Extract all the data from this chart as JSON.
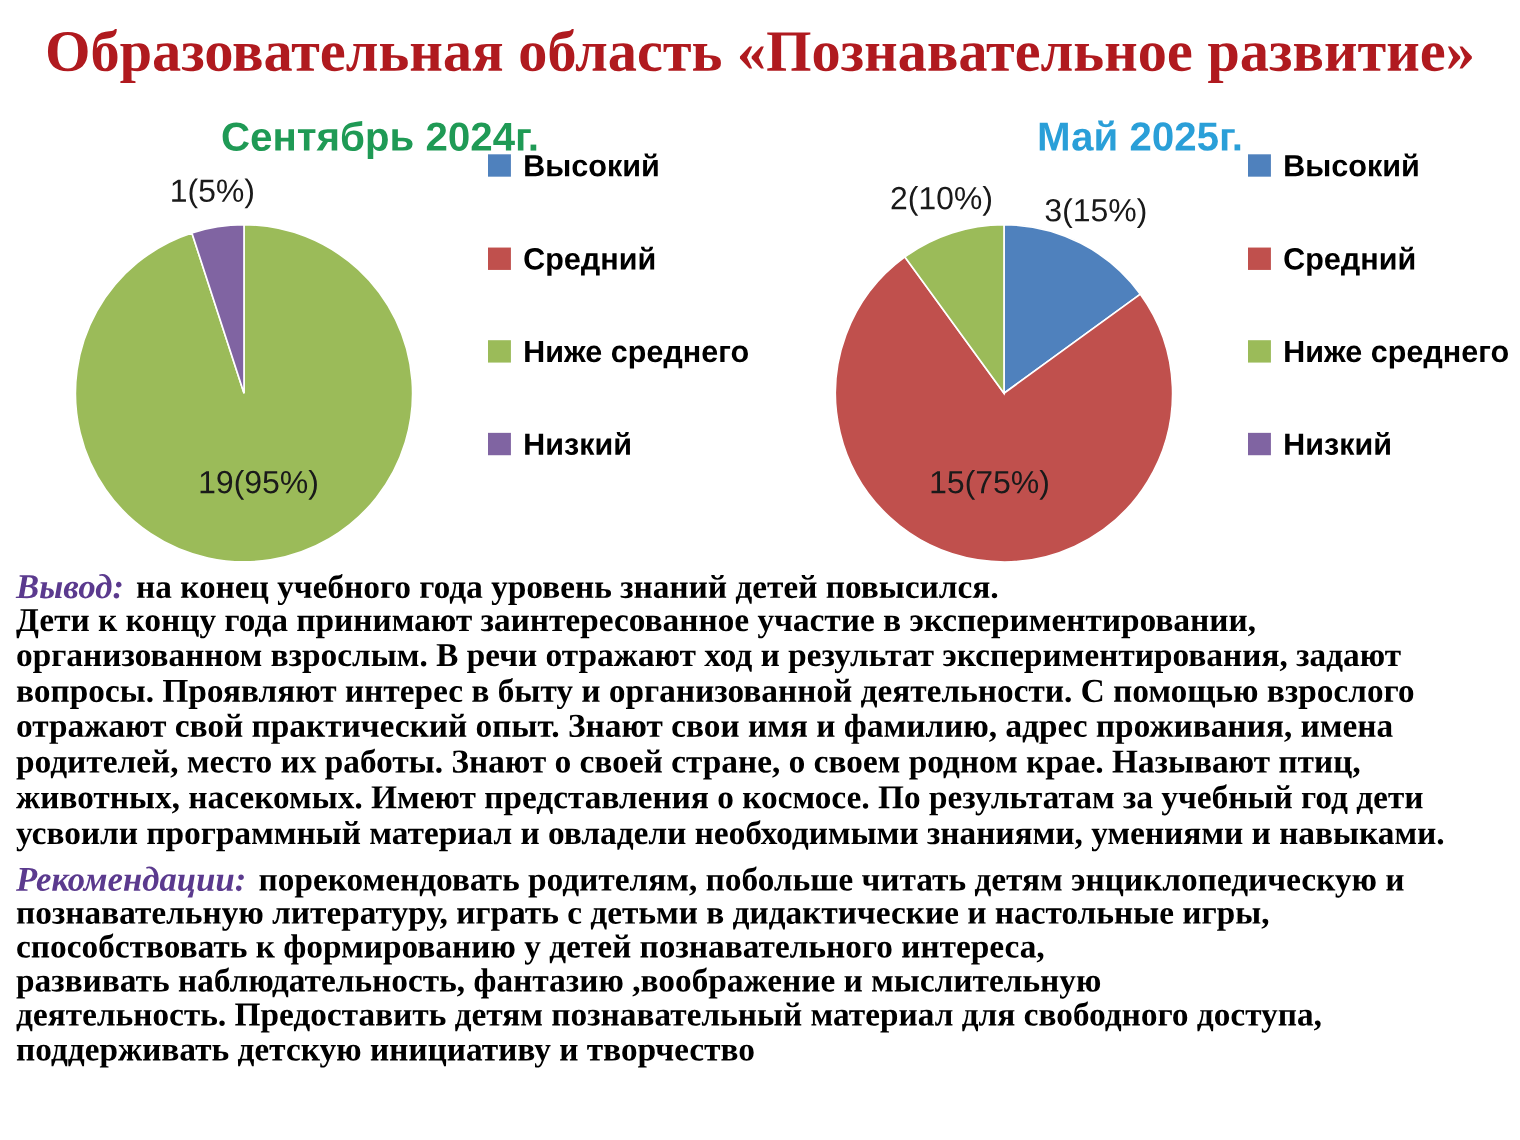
{
  "chart_data": [
    {
      "type": "other",
      "title": "Образовательная область «Познавательное развитие»"
    },
    {
      "type": "pie",
      "title": "Сентябрь 2024г.",
      "categories": [
        "Высокий",
        "Средний",
        "Ниже среднего",
        "Низкий"
      ],
      "values": [
        0,
        0,
        19,
        1
      ],
      "colors": [
        "#4f81bd",
        "#c0504d",
        "#9bbb59",
        "#8064a2"
      ],
      "value_labels": [
        null,
        null,
        "19(95%)",
        "1(5%)"
      ],
      "legend": "right"
    },
    {
      "type": "pie",
      "title": "Май 2025г.",
      "categories": [
        "Высокий",
        "Средний",
        "Ниже среднего",
        "Низкий"
      ],
      "values": [
        3,
        15,
        2,
        0
      ],
      "colors": [
        "#4f81bd",
        "#c0504d",
        "#9bbb59",
        "#8064a2"
      ],
      "value_labels": [
        "3(15%)",
        "15(75%)",
        "2(10%)",
        null
      ],
      "legend": "right"
    },
    {
      "type": "other",
      "annotations": [
        "Вывод:",
        "на конец учебного года уровень знаний детей повысился.",
        "Дети к концу года принимают заинтересованное участие в экспериментировании, организованном взрослым. В речи отражают ход и результат экспериментирования, задают вопросы. Проявляют интерес в быту и организованной деятельности. С помощью взрослого отражают свой практический опыт. Знают свои имя и фамилию, адрес проживания, имена родителей, место их работы. Знают о своей стране, о своем родном крае. Называют птиц, животных, насекомых. Имеют представления о космосе. По результатам за учебный год дети усвоили программный материал и овладели необходимыми знаниями, умениями и навыками.",
        "Рекомендации:",
        "порекомендовать родителям, побольше читать детям энциклопедическую и",
        "познавательную литературу, играть с детьми в дидактические и настольные игры,",
        "способствовать к формированию у детей познавательного интереса,",
        "развивать наблюдательность, фантазию ,воображение и мыслительную",
        "деятельность. Предоставить детям познавательный материал для свободного доступа, поддерживать детскую инициативу и творчество"
      ]
    }
  ]
}
